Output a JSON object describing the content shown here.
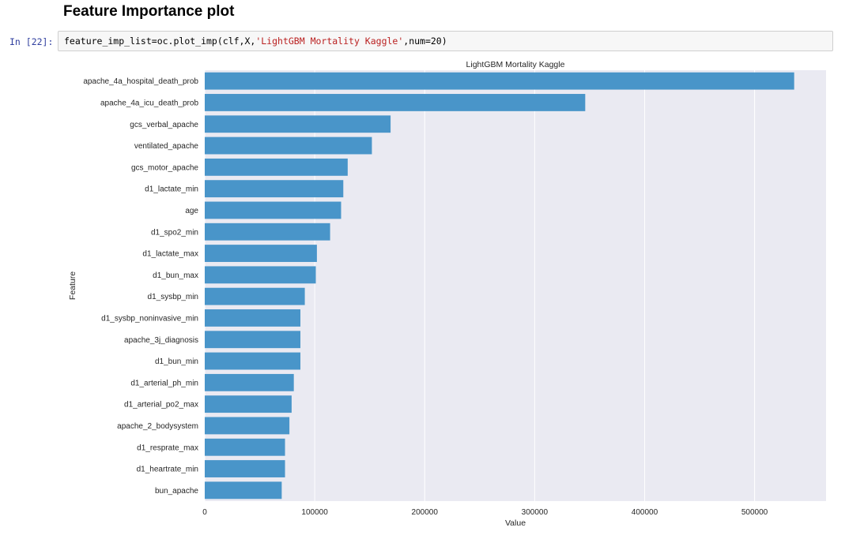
{
  "heading": "Feature Importance plot",
  "cell": {
    "prompt": "In [22]:",
    "code_prefix": "feature_imp_list=oc.plot_imp(clf,X,",
    "code_string": "'LightGBM Mortality Kaggle'",
    "code_suffix": ",num=20)"
  },
  "colors": {
    "bar": "#4995c9",
    "plot_background": "#eaeaf2",
    "grid": "#ffffff",
    "text": "#262626"
  },
  "chart_data": {
    "type": "bar",
    "orientation": "horizontal",
    "title": "LightGBM Mortality Kaggle",
    "xlabel": "Value",
    "ylabel": "Feature",
    "xlim": [
      0,
      565000
    ],
    "xticks": [
      0,
      100000,
      200000,
      300000,
      400000,
      500000
    ],
    "xtick_labels": [
      "0",
      "100000",
      "200000",
      "300000",
      "400000",
      "500000"
    ],
    "grid": "vertical",
    "categories": [
      "apache_4a_hospital_death_prob",
      "apache_4a_icu_death_prob",
      "gcs_verbal_apache",
      "ventilated_apache",
      "gcs_motor_apache",
      "d1_lactate_min",
      "age",
      "d1_spo2_min",
      "d1_lactate_max",
      "d1_bun_max",
      "d1_sysbp_min",
      "d1_sysbp_noninvasive_min",
      "apache_3j_diagnosis",
      "d1_bun_min",
      "d1_arterial_ph_min",
      "d1_arterial_po2_max",
      "apache_2_bodysystem",
      "d1_resprate_max",
      "d1_heartrate_min",
      "bun_apache"
    ],
    "values": [
      536000,
      346000,
      169000,
      152000,
      130000,
      126000,
      124000,
      114000,
      102000,
      101000,
      91000,
      87000,
      87000,
      87000,
      81000,
      79000,
      77000,
      73000,
      73000,
      70000
    ]
  }
}
